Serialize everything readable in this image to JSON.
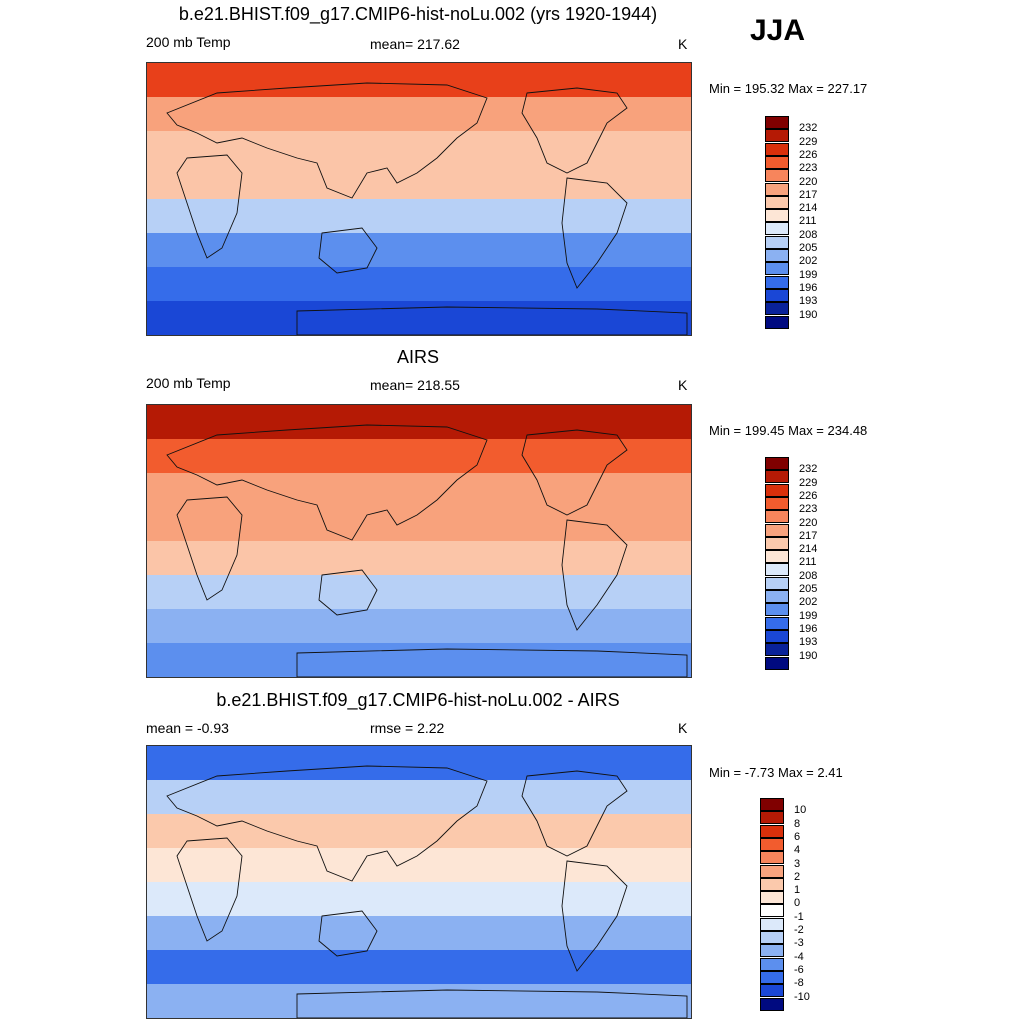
{
  "season": "JJA",
  "panels": [
    {
      "title": "b.e21.BHIST.f09_g17.CMIP6-hist-noLu.002 (yrs 1920-1944)",
      "left_label": "200 mb Temp",
      "center_label": "mean= 217.62",
      "units": "K",
      "minmax": "Min = 195.32 Max = 227.17",
      "levels": [
        "232",
        "229",
        "226",
        "223",
        "220",
        "217",
        "214",
        "211",
        "208",
        "205",
        "202",
        "199",
        "196",
        "193",
        "190"
      ],
      "colors": [
        "#800000",
        "#b51a05",
        "#d9300b",
        "#f25c2e",
        "#f7855c",
        "#f8a37e",
        "#fbc9ac",
        "#fde6d6",
        "#dce9fa",
        "#b7d0f6",
        "#8bb1f2",
        "#5c8fee",
        "#356cea",
        "#1a47d6",
        "#09229a",
        "#000a80"
      ],
      "bands": [
        "#e8401a",
        "#f8a27c",
        "#fbc5a8",
        "#fbc5a8",
        "#b7d0f6",
        "#5c8fee",
        "#356cea",
        "#1a47d6"
      ]
    },
    {
      "title": "AIRS",
      "left_label": "200 mb Temp",
      "center_label": "mean= 218.55",
      "units": "K",
      "minmax": "Min = 199.45 Max = 234.48",
      "levels": [
        "232",
        "229",
        "226",
        "223",
        "220",
        "217",
        "214",
        "211",
        "208",
        "205",
        "202",
        "199",
        "196",
        "193",
        "190"
      ],
      "colors": [
        "#800000",
        "#b51a05",
        "#d9300b",
        "#f25c2e",
        "#f7855c",
        "#f8a37e",
        "#fbc9ac",
        "#fde6d6",
        "#dce9fa",
        "#b7d0f6",
        "#8bb1f2",
        "#5c8fee",
        "#356cea",
        "#1a47d6",
        "#09229a",
        "#000a80"
      ],
      "bands": [
        "#b51a05",
        "#f25c2e",
        "#f8a27c",
        "#f8a27c",
        "#fbc5a8",
        "#b7d0f6",
        "#8bb1f2",
        "#5c8fee"
      ]
    },
    {
      "title": "b.e21.BHIST.f09_g17.CMIP6-hist-noLu.002 - AIRS",
      "left_label": "mean =  -0.93",
      "center_label": "rmse =   2.22",
      "units": "K",
      "minmax": "Min =  -7.73 Max =   2.41",
      "levels": [
        "10",
        "8",
        "6",
        "4",
        "3",
        "2",
        "1",
        "0",
        "-1",
        "-2",
        "-3",
        "-4",
        "-6",
        "-8",
        "-10"
      ],
      "colors": [
        "#800000",
        "#b51a05",
        "#d9300b",
        "#f25c2e",
        "#f7855c",
        "#f8a37e",
        "#fbc9ac",
        "#fde6d6",
        "#ffffff",
        "#dce9fa",
        "#b7d0f6",
        "#8bb1f2",
        "#5c8fee",
        "#356cea",
        "#1a47d6",
        "#000a80"
      ],
      "bands": [
        "#356cea",
        "#b7d0f6",
        "#fbc9ac",
        "#fde6d6",
        "#dce9fa",
        "#8bb1f2",
        "#356cea",
        "#8bb1f2"
      ]
    }
  ]
}
